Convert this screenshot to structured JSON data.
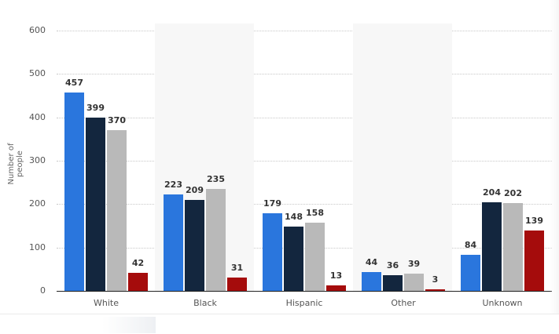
{
  "chart_data": {
    "type": "bar",
    "title": "",
    "xlabel": "",
    "ylabel": "Number of people",
    "ylim": [
      0,
      600
    ],
    "yticks": [
      0,
      100,
      200,
      300,
      400,
      500,
      600
    ],
    "grid": true,
    "legend": "none visible",
    "categories": [
      "White",
      "Black",
      "Hispanic",
      "Other",
      "Unknown"
    ],
    "series": [
      {
        "name": "Series 1",
        "color": "#2a76dd",
        "values": [
          457,
          223,
          179,
          44,
          84
        ]
      },
      {
        "name": "Series 2",
        "color": "#13263e",
        "values": [
          399,
          209,
          148,
          36,
          204
        ]
      },
      {
        "name": "Series 3",
        "color": "#b9b9b9",
        "values": [
          370,
          235,
          158,
          39,
          202
        ]
      },
      {
        "name": "Series 4",
        "color": "#a50c0c",
        "values": [
          42,
          31,
          13,
          3,
          139
        ]
      }
    ]
  },
  "axis": {
    "y_label": "Number of people",
    "y_ticks": [
      "0",
      "100",
      "200",
      "300",
      "400",
      "500",
      "600"
    ]
  },
  "labels": {
    "x": [
      "White",
      "Black",
      "Hispanic",
      "Other",
      "Unknown"
    ]
  }
}
